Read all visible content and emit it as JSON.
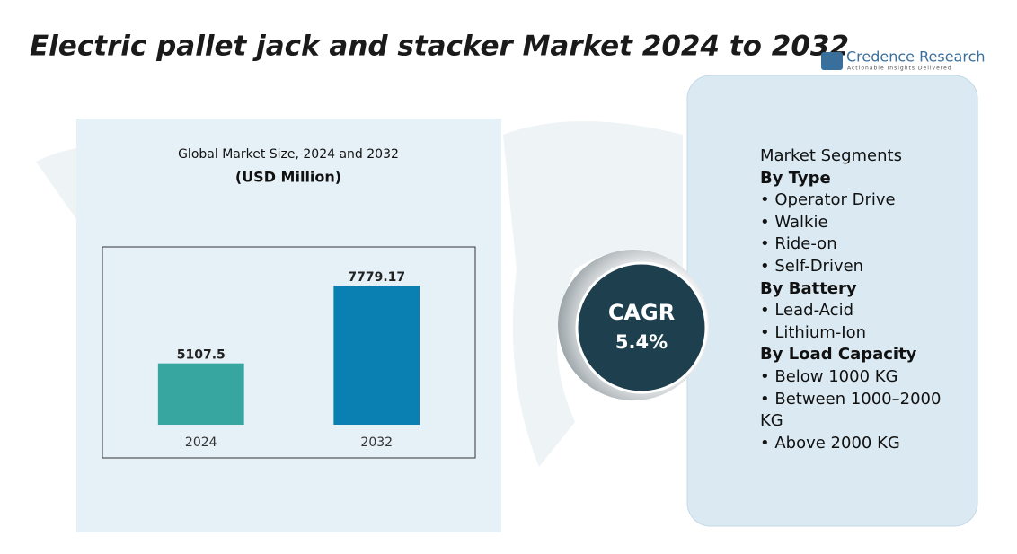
{
  "header": {
    "title": "Electric pallet jack and stacker Market 2024 to 2032",
    "brand": "Credence Research",
    "tagline": "Actionable Insights Delivered"
  },
  "chart_data": {
    "type": "bar",
    "title": "Global Market Size, 2024 and 2032",
    "subtitle": "(USD Million)",
    "categories": [
      "2024",
      "2032"
    ],
    "values": [
      5107.5,
      7779.17
    ],
    "colors": [
      "#37a6a0",
      "#0a7fb1"
    ],
    "ylim": [
      3000,
      8800
    ]
  },
  "cagr": {
    "label": "CAGR",
    "value": "5.4%"
  },
  "segments": {
    "title": "Market Segments",
    "groups": [
      {
        "heading": "By Type",
        "items": [
          "Operator Drive",
          "Walkie",
          "Ride-on",
          "Self-Driven"
        ]
      },
      {
        "heading": "By Battery",
        "items": [
          "Lead-Acid",
          "Lithium-Ion"
        ]
      },
      {
        "heading": "By Load Capacity",
        "items": [
          "Below 1000 KG",
          "Between 1000–2000 KG",
          "Above 2000 KG"
        ]
      }
    ]
  }
}
